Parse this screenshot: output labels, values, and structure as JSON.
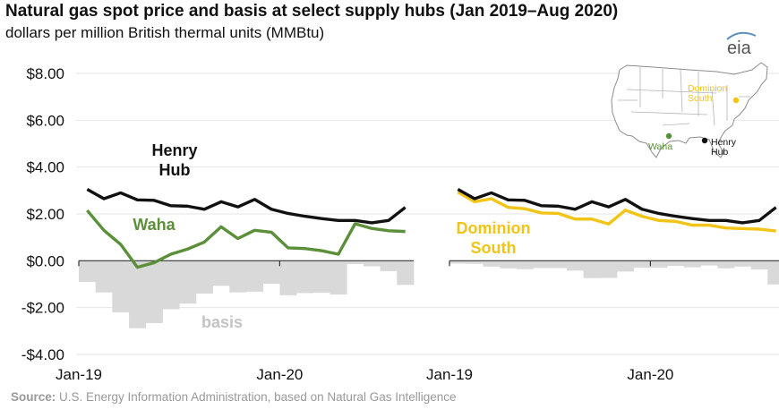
{
  "header": {
    "title": "Natural gas spot price and basis at select supply hubs (Jan 2019–Aug 2020)",
    "subtitle": "dollars per million British thermal units (MMBtu)",
    "logo": "eia",
    "source_label": "Source:",
    "source_text": " U.S. Energy Information Administration, based on Natural Gas Intelligence"
  },
  "colors": {
    "henry_hub": "#111111",
    "waha": "#5b8f3a",
    "dominion_south": "#f2c418",
    "basis": "#d9d9d9",
    "map_land": "#ffffff",
    "map_border": "#8c8c8c"
  },
  "map": {
    "dominion_label": [
      "Dominion",
      "South"
    ],
    "waha_label": "Waha",
    "henry_label": [
      "Henry",
      "Hub"
    ]
  },
  "chart_data": [
    {
      "type": "line",
      "panel": "left",
      "y_tick_labels": [
        "$8.00",
        "$6.00",
        "$4.00",
        "$2.00",
        "$0.00",
        "-$2.00",
        "-$4.00"
      ],
      "y_ticks": [
        8,
        6,
        4,
        2,
        0,
        -2,
        -4
      ],
      "ylim": [
        -4,
        8
      ],
      "x_tick_labels": [
        "Jan-19",
        "Jan-20"
      ],
      "x_tick_index": [
        0,
        12
      ],
      "months": [
        "Jan-19",
        "Feb-19",
        "Mar-19",
        "Apr-19",
        "May-19",
        "Jun-19",
        "Jul-19",
        "Aug-19",
        "Sep-19",
        "Oct-19",
        "Nov-19",
        "Dec-19",
        "Jan-20",
        "Feb-20",
        "Mar-20",
        "Apr-20",
        "May-20",
        "Jun-20",
        "Jul-20",
        "Aug-20"
      ],
      "series": [
        {
          "name": "Henry Hub",
          "label_lines": [
            "Henry",
            "Hub"
          ],
          "role": "price",
          "values": [
            3.05,
            2.65,
            2.9,
            2.6,
            2.58,
            2.35,
            2.33,
            2.2,
            2.52,
            2.3,
            2.62,
            2.2,
            2.02,
            1.9,
            1.8,
            1.72,
            1.72,
            1.62,
            1.72,
            2.28
          ]
        },
        {
          "name": "Waha",
          "label_lines": [
            "Waha"
          ],
          "role": "price",
          "values": [
            2.15,
            1.3,
            0.7,
            -0.28,
            -0.08,
            0.28,
            0.5,
            0.8,
            1.45,
            0.95,
            1.3,
            1.22,
            0.55,
            0.52,
            0.43,
            0.28,
            1.58,
            1.38,
            1.28,
            1.25
          ]
        },
        {
          "name": "basis",
          "label_lines": [
            "basis"
          ],
          "role": "basis",
          "values": [
            -0.9,
            -1.35,
            -2.2,
            -2.88,
            -2.66,
            -2.07,
            -1.83,
            -1.4,
            -1.07,
            -1.35,
            -1.32,
            -0.98,
            -1.47,
            -1.38,
            -1.37,
            -1.44,
            -0.14,
            -0.24,
            -0.44,
            -1.03
          ]
        }
      ]
    },
    {
      "type": "line",
      "panel": "right",
      "ylim": [
        -4,
        8
      ],
      "x_tick_labels": [
        "Jan-19",
        "Jan-20"
      ],
      "x_tick_index": [
        0,
        12
      ],
      "months": [
        "Jan-19",
        "Feb-19",
        "Mar-19",
        "Apr-19",
        "May-19",
        "Jun-19",
        "Jul-19",
        "Aug-19",
        "Sep-19",
        "Oct-19",
        "Nov-19",
        "Dec-19",
        "Jan-20",
        "Feb-20",
        "Mar-20",
        "Apr-20",
        "May-20",
        "Jun-20",
        "Jul-20",
        "Aug-20"
      ],
      "series": [
        {
          "name": "Henry Hub",
          "label_lines": [],
          "role": "price",
          "values": [
            3.05,
            2.65,
            2.9,
            2.6,
            2.58,
            2.35,
            2.33,
            2.2,
            2.52,
            2.3,
            2.62,
            2.2,
            2.02,
            1.9,
            1.8,
            1.72,
            1.72,
            1.62,
            1.72,
            2.28
          ]
        },
        {
          "name": "Dominion South",
          "label_lines": [
            "Dominion",
            "South"
          ],
          "role": "price",
          "values": [
            2.93,
            2.52,
            2.65,
            2.28,
            2.22,
            2.04,
            2.02,
            1.78,
            1.78,
            1.57,
            2.16,
            1.9,
            1.72,
            1.68,
            1.52,
            1.52,
            1.4,
            1.37,
            1.35,
            1.27
          ]
        },
        {
          "name": "basis",
          "label_lines": [],
          "role": "basis",
          "values": [
            -0.12,
            -0.13,
            -0.25,
            -0.32,
            -0.36,
            -0.31,
            -0.31,
            -0.42,
            -0.74,
            -0.73,
            -0.46,
            -0.3,
            -0.3,
            -0.22,
            -0.28,
            -0.2,
            -0.32,
            -0.25,
            -0.37,
            -1.01
          ]
        }
      ]
    }
  ]
}
